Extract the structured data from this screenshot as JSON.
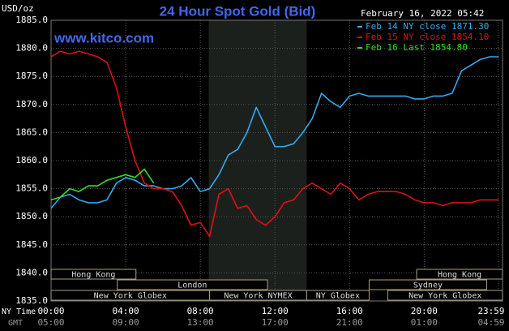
{
  "chart_data": {
    "type": "line",
    "title": "24 Hour Spot Gold (Bid)",
    "subtitle": "www.kitco.com",
    "date": "February 16, 2022 05:42",
    "y_label": "USD/oz",
    "x_label": "NY Time",
    "x2_label": "GMT",
    "x": [
      0,
      0.5,
      1,
      1.5,
      2,
      2.5,
      3,
      3.5,
      4,
      4.5,
      5,
      5.5,
      6,
      6.5,
      7,
      7.5,
      8,
      8.5,
      9,
      9.5,
      10,
      10.5,
      11,
      11.5,
      12,
      12.5,
      13,
      13.5,
      14,
      14.5,
      15,
      15.5,
      16,
      16.5,
      17,
      17.5,
      18,
      18.5,
      19,
      19.5,
      20,
      20.5,
      21,
      21.5,
      22,
      22.5,
      23,
      23.5,
      24
    ],
    "xlim": [
      0,
      24.2
    ],
    "xticks": [
      {
        "value": 0,
        "label": "00:00"
      },
      {
        "value": 4,
        "label": "04:00"
      },
      {
        "value": 8,
        "label": "08:00"
      },
      {
        "value": 12,
        "label": "12:00"
      },
      {
        "value": 16,
        "label": "16:00"
      },
      {
        "value": 20,
        "label": "20:00"
      },
      {
        "value": 23.98,
        "label": "23:59"
      }
    ],
    "x2_tick_labels": [
      "05:00",
      "09:00",
      "13:00",
      "17:00",
      "21:00",
      "01:00",
      "04:59"
    ],
    "ylim": [
      1835,
      1885
    ],
    "yticks": [
      {
        "value": 1835,
        "label": "1835.0"
      },
      {
        "value": 1840,
        "label": "1840.0"
      },
      {
        "value": 1845,
        "label": "1845.0"
      },
      {
        "value": 1850,
        "label": "1850.0"
      },
      {
        "value": 1855,
        "label": "1855.0"
      },
      {
        "value": 1860,
        "label": "1860.0"
      },
      {
        "value": 1865,
        "label": "1865.0"
      },
      {
        "value": 1870,
        "label": "1870.0"
      },
      {
        "value": 1875,
        "label": "1875.0"
      },
      {
        "value": 1880,
        "label": "1880.0"
      },
      {
        "value": 1885,
        "label": "1885.0"
      }
    ],
    "grid": true,
    "highlight_x": [
      8.45,
      13.7
    ],
    "series": [
      {
        "name": "Feb 14 NY close 1871.30",
        "color": "#33aaee",
        "values": [
          1851.5,
          1853.5,
          1854,
          1853,
          1852.5,
          1852.5,
          1853,
          1856,
          1857,
          1856.5,
          1855.5,
          1855.5,
          1855,
          1855,
          1855.5,
          1857,
          1854.5,
          1855,
          1857.5,
          1861,
          1862,
          1865,
          1869.5,
          1866,
          1862.5,
          1862.5,
          1863,
          1865,
          1867.5,
          1872,
          1870.5,
          1869.5,
          1871.5,
          1872,
          1871.5,
          1871.5,
          1871.5,
          1871.5,
          1871.5,
          1871,
          1871,
          1871.5,
          1871.5,
          1872,
          1876,
          1877,
          1878,
          1878.5,
          1878.5
        ]
      },
      {
        "name": "Feb 15 NY close 1854.10",
        "color": "#dd1111",
        "values": [
          1878.5,
          1879.5,
          1879,
          1879.5,
          1879,
          1878.5,
          1877.5,
          1873,
          1866,
          1860,
          1856,
          1855,
          1855,
          1854.5,
          1852,
          1848.5,
          1849,
          1846.5,
          1854,
          1855,
          1851.5,
          1852,
          1849.5,
          1848.5,
          1850,
          1852.5,
          1853,
          1855,
          1856,
          1855,
          1854,
          1856,
          1855,
          1853,
          1854,
          1854.5,
          1854.5,
          1854.5,
          1854,
          1853,
          1852.5,
          1852.5,
          1852,
          1852.5,
          1852.5,
          1852.5,
          1853,
          1853,
          1853
        ]
      },
      {
        "name": "Feb 16 Last 1854.80",
        "color": "#33dd22",
        "values": [
          1853,
          1853.5,
          1855,
          1854.5,
          1855.5,
          1855.5,
          1856.5,
          1857,
          1857.5,
          1857,
          1858.5,
          1856,
          null,
          null,
          null,
          null,
          null,
          null,
          null,
          null,
          null,
          null,
          null,
          null,
          null,
          null,
          null,
          null,
          null,
          null,
          null,
          null,
          null,
          null,
          null,
          null,
          null,
          null,
          null,
          null,
          null,
          null,
          null,
          null,
          null,
          null,
          null,
          null,
          null
        ]
      }
    ],
    "sessions": [
      {
        "name": "Hong Kong",
        "row": 1,
        "start": 0,
        "end": 4.55
      },
      {
        "name": "Hong Kong",
        "row": 1,
        "start": 19.6,
        "end": 24.2
      },
      {
        "name": "London",
        "row": 2,
        "start": 3.55,
        "end": 11.6
      },
      {
        "name": "Sydney",
        "row": 2,
        "start": 17.05,
        "end": 23.35
      },
      {
        "name": "New York Globex",
        "row": 3,
        "start": 0,
        "end": 8.5
      },
      {
        "name": "New York NYMEX",
        "row": 3,
        "start": 8.5,
        "end": 13.7
      },
      {
        "name": "NY Globex",
        "row": 3,
        "start": 13.7,
        "end": 17.05
      },
      {
        "name": "New York Globex",
        "row": 3,
        "start": 18.05,
        "end": 24.2
      }
    ]
  }
}
